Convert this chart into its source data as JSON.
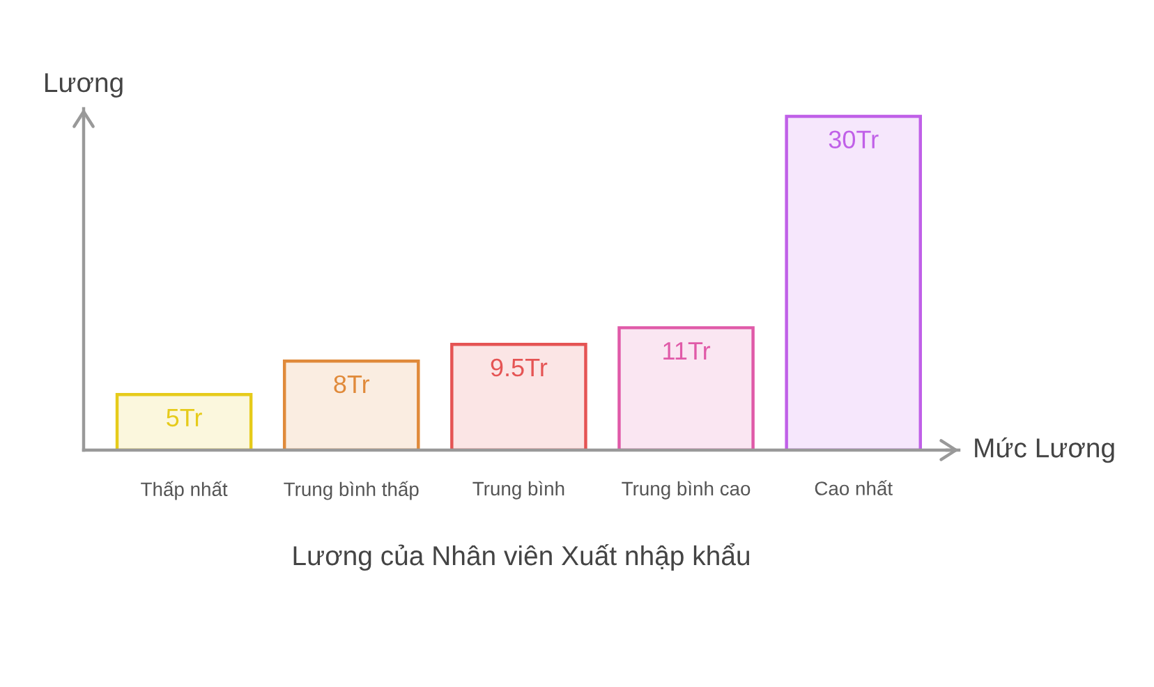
{
  "chart_data": {
    "type": "bar",
    "title": "Lương của Nhân viên Xuất nhập khẩu",
    "xlabel": "Mức Lương",
    "ylabel": "Lương",
    "categories": [
      "Thấp nhất",
      "Trung bình thấp",
      "Trung bình",
      "Trung bình cao",
      "Cao nhất"
    ],
    "values": [
      5,
      8,
      9.5,
      11,
      30
    ],
    "colors": [
      "#e6cb1a",
      "#e08a3a",
      "#e55454",
      "#e05aa8",
      "#c060e8"
    ],
    "value_labels": [
      "5Tr",
      "8Tr",
      "9.5Tr",
      "11Tr",
      "30Tr"
    ]
  }
}
